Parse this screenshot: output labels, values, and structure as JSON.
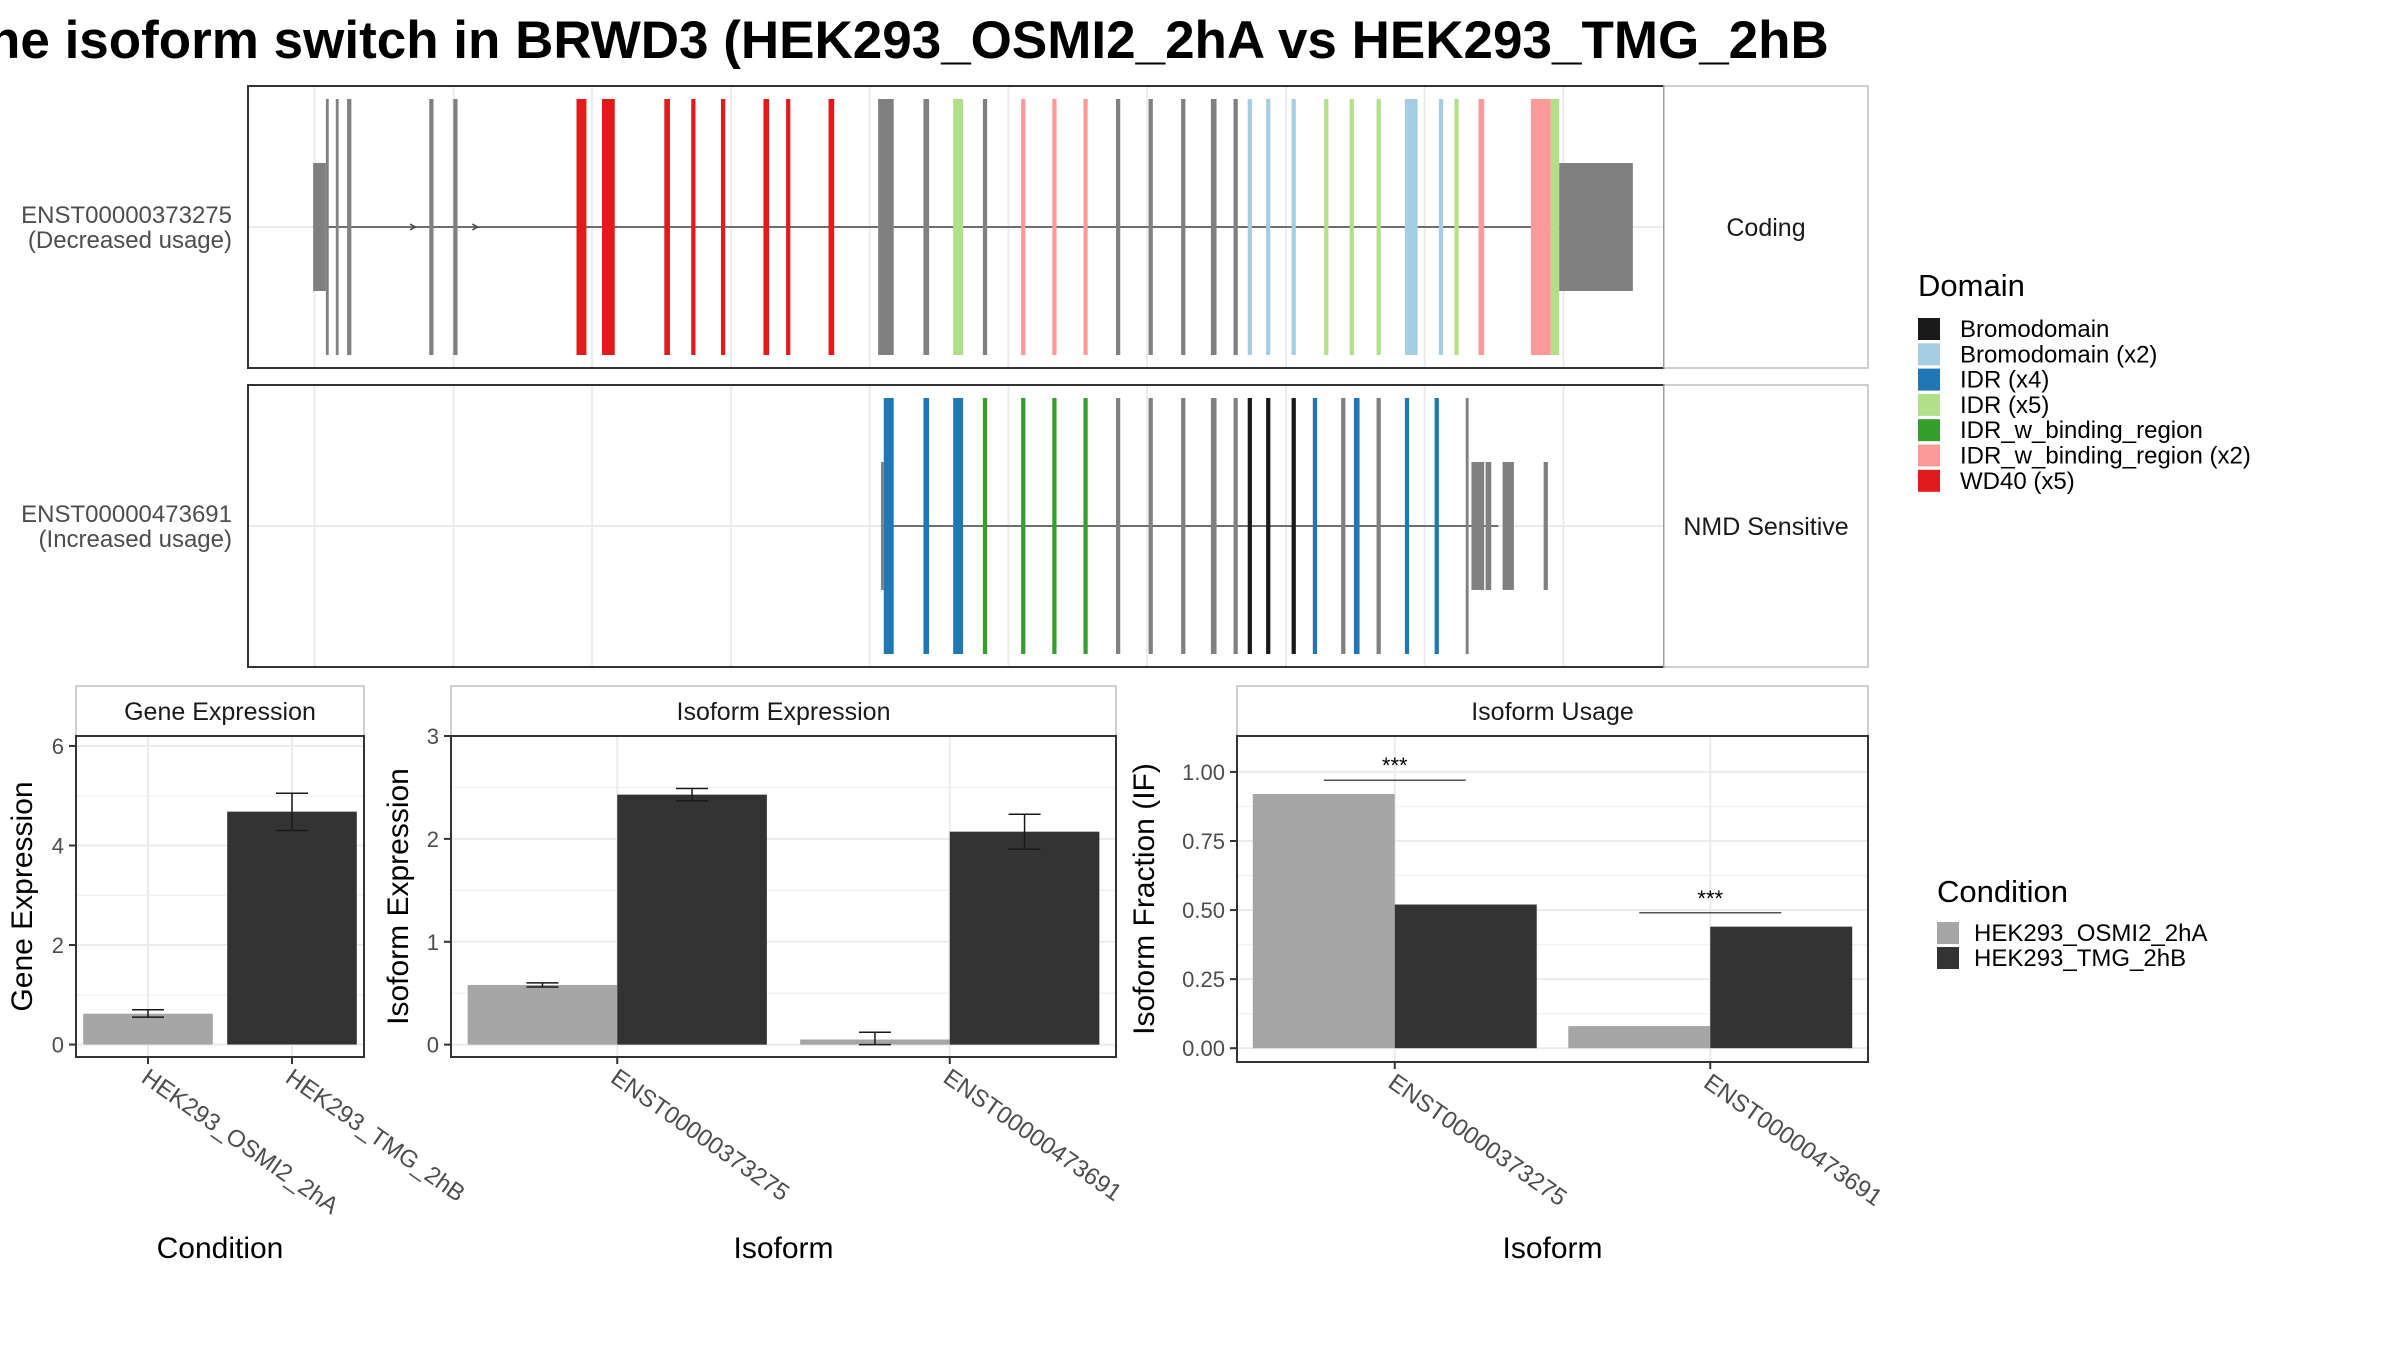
{
  "chart_data": [
    {
      "type": "isoform_structure",
      "title": "he isoform switch in BRWD3 (HEK293_OSMI2_2hA vs HEK293_TMG_2hB",
      "legend": {
        "title": "Domain",
        "entries": [
          {
            "label": "Bromodomain",
            "color": "#1a1a1a"
          },
          {
            "label": "Bromodomain (x2)",
            "color": "#a6cee3"
          },
          {
            "label": "IDR (x4)",
            "color": "#1f78b4"
          },
          {
            "label": "IDR (x5)",
            "color": "#b2df8a"
          },
          {
            "label": "IDR_w_binding_region",
            "color": "#33a02c"
          },
          {
            "label": "IDR_w_binding_region (x2)",
            "color": "#fb9a99"
          },
          {
            "label": "WD40 (x5)",
            "color": "#e31a1c"
          }
        ]
      },
      "isoforms": [
        {
          "id": "ENST00000373275",
          "usage": "(Decreased usage)",
          "category": "Coding",
          "intron": [
            0.046,
            0.943
          ],
          "exons": [
            {
              "s": 0.046,
              "e": 0.055,
              "h": "utr",
              "c": "gray"
            },
            {
              "s": 0.055,
              "e": 0.057,
              "h": "cds",
              "c": "gray"
            },
            {
              "s": 0.062,
              "e": 0.064,
              "h": "cds",
              "c": "gray"
            },
            {
              "s": 0.07,
              "e": 0.073,
              "h": "cds",
              "c": "gray"
            },
            {
              "s": 0.128,
              "e": 0.131,
              "h": "cds",
              "c": "gray"
            },
            {
              "s": 0.145,
              "e": 0.148,
              "h": "cds",
              "c": "gray"
            },
            {
              "s": 0.232,
              "e": 0.239,
              "h": "cds",
              "c": "red"
            },
            {
              "s": 0.25,
              "e": 0.259,
              "h": "cds",
              "c": "red"
            },
            {
              "s": 0.294,
              "e": 0.298,
              "h": "cds",
              "c": "red"
            },
            {
              "s": 0.313,
              "e": 0.316,
              "h": "cds",
              "c": "red"
            },
            {
              "s": 0.334,
              "e": 0.337,
              "h": "cds",
              "c": "red"
            },
            {
              "s": 0.364,
              "e": 0.368,
              "h": "cds",
              "c": "red"
            },
            {
              "s": 0.38,
              "e": 0.383,
              "h": "cds",
              "c": "red"
            },
            {
              "s": 0.41,
              "e": 0.414,
              "h": "cds",
              "c": "red"
            },
            {
              "s": 0.445,
              "e": 0.456,
              "h": "cds",
              "c": "gray"
            },
            {
              "s": 0.477,
              "e": 0.481,
              "h": "cds",
              "c": "gray"
            },
            {
              "s": 0.498,
              "e": 0.505,
              "h": "cds",
              "c": "lightgreen"
            },
            {
              "s": 0.519,
              "e": 0.522,
              "h": "cds",
              "c": "gray"
            },
            {
              "s": 0.546,
              "e": 0.549,
              "h": "cds",
              "c": "pink"
            },
            {
              "s": 0.568,
              "e": 0.571,
              "h": "cds",
              "c": "pink"
            },
            {
              "s": 0.59,
              "e": 0.593,
              "h": "cds",
              "c": "pink"
            },
            {
              "s": 0.613,
              "e": 0.616,
              "h": "cds",
              "c": "gray"
            },
            {
              "s": 0.636,
              "e": 0.639,
              "h": "cds",
              "c": "gray"
            },
            {
              "s": 0.659,
              "e": 0.662,
              "h": "cds",
              "c": "gray"
            },
            {
              "s": 0.68,
              "e": 0.684,
              "h": "cds",
              "c": "gray"
            },
            {
              "s": 0.696,
              "e": 0.699,
              "h": "cds",
              "c": "gray"
            },
            {
              "s": 0.706,
              "e": 0.709,
              "h": "cds",
              "c": "lightblue"
            },
            {
              "s": 0.719,
              "e": 0.722,
              "h": "cds",
              "c": "lightblue"
            },
            {
              "s": 0.737,
              "e": 0.74,
              "h": "cds",
              "c": "lightblue"
            },
            {
              "s": 0.76,
              "e": 0.763,
              "h": "cds",
              "c": "lightgreen"
            },
            {
              "s": 0.778,
              "e": 0.781,
              "h": "cds",
              "c": "lightgreen"
            },
            {
              "s": 0.797,
              "e": 0.8,
              "h": "cds",
              "c": "lightgreen"
            },
            {
              "s": 0.817,
              "e": 0.826,
              "h": "cds",
              "c": "lightblue"
            },
            {
              "s": 0.841,
              "e": 0.844,
              "h": "cds",
              "c": "lightblue"
            },
            {
              "s": 0.852,
              "e": 0.855,
              "h": "cds",
              "c": "lightgreen"
            },
            {
              "s": 0.869,
              "e": 0.873,
              "h": "cds",
              "c": "pink"
            },
            {
              "s": 0.906,
              "e": 0.92,
              "h": "cds",
              "c": "pink"
            },
            {
              "s": 0.92,
              "e": 0.926,
              "h": "cds",
              "c": "lightgreen"
            },
            {
              "s": 0.926,
              "e": 0.978,
              "h": "utr",
              "c": "gray"
            }
          ]
        },
        {
          "id": "ENST00000473691",
          "usage": "(Increased usage)",
          "category": "NMD Sensitive",
          "intron": [
            0.447,
            0.883
          ],
          "exons": [
            {
              "s": 0.447,
              "e": 0.449,
              "h": "utr",
              "c": "gray"
            },
            {
              "s": 0.449,
              "e": 0.456,
              "h": "cds",
              "c": "blue"
            },
            {
              "s": 0.477,
              "e": 0.481,
              "h": "cds",
              "c": "blue"
            },
            {
              "s": 0.498,
              "e": 0.505,
              "h": "cds",
              "c": "blue"
            },
            {
              "s": 0.519,
              "e": 0.522,
              "h": "cds",
              "c": "green"
            },
            {
              "s": 0.546,
              "e": 0.549,
              "h": "cds",
              "c": "green"
            },
            {
              "s": 0.568,
              "e": 0.571,
              "h": "cds",
              "c": "green"
            },
            {
              "s": 0.59,
              "e": 0.593,
              "h": "cds",
              "c": "green"
            },
            {
              "s": 0.613,
              "e": 0.616,
              "h": "cds",
              "c": "gray"
            },
            {
              "s": 0.636,
              "e": 0.639,
              "h": "cds",
              "c": "gray"
            },
            {
              "s": 0.659,
              "e": 0.662,
              "h": "cds",
              "c": "gray"
            },
            {
              "s": 0.68,
              "e": 0.684,
              "h": "cds",
              "c": "gray"
            },
            {
              "s": 0.696,
              "e": 0.699,
              "h": "cds",
              "c": "gray"
            },
            {
              "s": 0.706,
              "e": 0.709,
              "h": "cds",
              "c": "black"
            },
            {
              "s": 0.719,
              "e": 0.722,
              "h": "cds",
              "c": "black"
            },
            {
              "s": 0.737,
              "e": 0.74,
              "h": "cds",
              "c": "black"
            },
            {
              "s": 0.752,
              "e": 0.755,
              "h": "cds",
              "c": "blue"
            },
            {
              "s": 0.772,
              "e": 0.775,
              "h": "cds",
              "c": "gray"
            },
            {
              "s": 0.781,
              "e": 0.785,
              "h": "cds",
              "c": "blue"
            },
            {
              "s": 0.797,
              "e": 0.8,
              "h": "cds",
              "c": "gray"
            },
            {
              "s": 0.817,
              "e": 0.82,
              "h": "cds",
              "c": "blue"
            },
            {
              "s": 0.838,
              "e": 0.841,
              "h": "cds",
              "c": "blue"
            },
            {
              "s": 0.86,
              "e": 0.862,
              "h": "cds",
              "c": "gray"
            },
            {
              "s": 0.864,
              "e": 0.873,
              "h": "utr",
              "c": "gray"
            },
            {
              "s": 0.874,
              "e": 0.878,
              "h": "utr",
              "c": "gray"
            },
            {
              "s": 0.886,
              "e": 0.894,
              "h": "utr",
              "c": "gray"
            },
            {
              "s": 0.915,
              "e": 0.918,
              "h": "utr",
              "c": "gray"
            }
          ]
        }
      ],
      "palette": {
        "gray": "#808080",
        "red": "#e31a1c",
        "pink": "#fb9a99",
        "lightgreen": "#b2df8a",
        "lightblue": "#a6cee3",
        "blue": "#1f78b4",
        "green": "#33a02c",
        "black": "#1a1a1a"
      }
    },
    {
      "type": "bar",
      "title": "Gene Expression",
      "xlabel": "Condition",
      "ylabel": "Gene Expression",
      "categories": [
        "HEK293_OSMI2_2hA",
        "HEK293_TMG_2hB"
      ],
      "values": [
        0.62,
        4.68
      ],
      "errors": [
        [
          0.55,
          0.7
        ],
        [
          4.3,
          5.05
        ]
      ],
      "colors": [
        "#a6a6a6",
        "#333333"
      ],
      "ylim": [
        -0.25,
        6.2
      ],
      "yticks": [
        0,
        2,
        4,
        6
      ]
    },
    {
      "type": "bar",
      "title": "Isoform Expression",
      "xlabel": "Isoform",
      "ylabel": "Isoform Expression",
      "categories": [
        "ENST00000373275",
        "ENST00000473691"
      ],
      "series": [
        {
          "name": "HEK293_OSMI2_2hA",
          "values": [
            0.58,
            0.05
          ],
          "errors": [
            [
              0.56,
              0.6
            ],
            [
              0.0,
              0.12
            ]
          ]
        },
        {
          "name": "HEK293_TMG_2hB",
          "values": [
            2.43,
            2.07
          ],
          "errors": [
            [
              2.37,
              2.49
            ],
            [
              1.9,
              2.24
            ]
          ]
        }
      ],
      "ylim": [
        -0.12,
        3.0
      ],
      "yticks": [
        0,
        1,
        2,
        3
      ]
    },
    {
      "type": "bar",
      "title": "Isoform Usage",
      "xlabel": "Isoform",
      "ylabel": "Isoform Fraction (IF)",
      "categories": [
        "ENST00000373275",
        "ENST00000473691"
      ],
      "series": [
        {
          "name": "HEK293_OSMI2_2hA",
          "values": [
            0.92,
            0.08
          ]
        },
        {
          "name": "HEK293_TMG_2hB",
          "values": [
            0.52,
            0.44
          ]
        }
      ],
      "significance": [
        {
          "label": "***",
          "y": 0.97
        },
        {
          "label": "***",
          "y": 0.49
        }
      ],
      "ylim": [
        -0.05,
        1.13
      ],
      "yticks": [
        0.0,
        0.25,
        0.5,
        0.75,
        1.0
      ],
      "yticklabels": [
        "0.00",
        "0.25",
        "0.50",
        "0.75",
        "1.00"
      ],
      "legend": {
        "title": "Condition",
        "entries": [
          {
            "label": "HEK293_OSMI2_2hA",
            "color": "#a6a6a6"
          },
          {
            "label": "HEK293_TMG_2hB",
            "color": "#333333"
          }
        ]
      }
    }
  ]
}
